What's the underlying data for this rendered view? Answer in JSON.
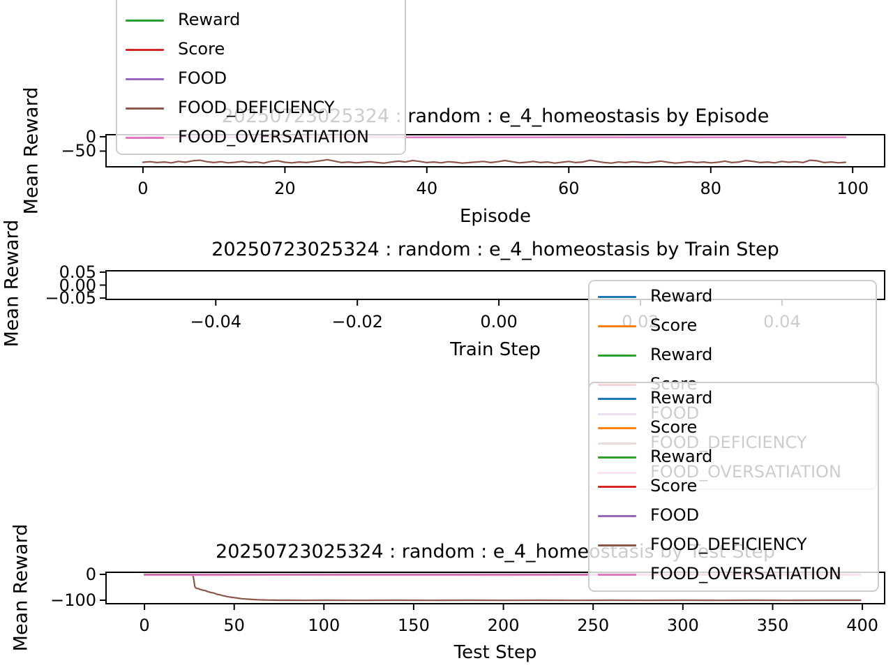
{
  "figure": {
    "background": "#ffffff"
  },
  "colors": {
    "blue": "#1f77b4",
    "orange": "#ff7f0e",
    "green": "#2ca02c",
    "red": "#d62728",
    "purple": "#9467bd",
    "brown": "#8c564b",
    "pink": "#e377c2",
    "axis": "#000000",
    "legend_border": "#cdcdcd"
  },
  "chart_data": [
    {
      "type": "line",
      "title": "20250723025324 : random : e_4_homeostasis by Episode",
      "xlabel": "Episode",
      "ylabel": "Mean Reward",
      "xlim": [
        -5.2,
        104.5
      ],
      "ylim": [
        -104.8,
        7.1
      ],
      "grid": false,
      "xticks": [
        {
          "v": 0,
          "label": "0"
        },
        {
          "v": 20,
          "label": "20"
        },
        {
          "v": 40,
          "label": "40"
        },
        {
          "v": 60,
          "label": "60"
        },
        {
          "v": 80,
          "label": "80"
        },
        {
          "v": 100,
          "label": "100"
        }
      ],
      "yticks": [
        {
          "v": 0,
          "label": "0"
        },
        {
          "v": -50,
          "label": "−50"
        }
      ],
      "legend": {
        "position": "upper-left, clipped above figure top",
        "entries": [
          {
            "label": "Reward",
            "color": "#1f77b4"
          },
          {
            "label": "Score",
            "color": "#ff7f0e"
          },
          {
            "label": "Reward",
            "color": "#2ca02c"
          },
          {
            "label": "Score",
            "color": "#d62728"
          },
          {
            "label": "FOOD",
            "color": "#9467bd"
          },
          {
            "label": "FOOD_DEFICIENCY",
            "color": "#8c564b"
          },
          {
            "label": "FOOD_OVERSATIATION",
            "color": "#e377c2"
          }
        ]
      },
      "series": [
        {
          "name": "Reward",
          "color": "#1f77b4",
          "lw": 2,
          "x": [
            0,
            99
          ],
          "y": [
            -1.4,
            -1.4
          ]
        },
        {
          "name": "Score",
          "color": "#ff7f0e",
          "lw": 2,
          "x": [
            0,
            99
          ],
          "y": [
            -1.5,
            -1.5
          ]
        },
        {
          "name": "Reward",
          "color": "#2ca02c",
          "lw": 2,
          "x": [
            0,
            99
          ],
          "y": [
            -1.5,
            -1.5
          ]
        },
        {
          "name": "Score",
          "color": "#d62728",
          "lw": 2,
          "x": [
            0,
            99
          ],
          "y": [
            -1.6,
            -1.6
          ]
        },
        {
          "name": "FOOD",
          "color": "#9467bd",
          "lw": 2,
          "x": [
            0,
            99
          ],
          "y": [
            -1.6,
            -1.6
          ]
        },
        {
          "name": "FOOD_DEFICIENCY",
          "color": "#8c564b",
          "lw": 2.2,
          "x": "index",
          "y": [
            -89,
            -87,
            -90,
            -88,
            -91,
            -86,
            -89,
            -84,
            -82,
            -87,
            -90,
            -87,
            -91,
            -89,
            -86,
            -90,
            -88,
            -92,
            -86,
            -84,
            -89,
            -91,
            -88,
            -90,
            -87,
            -84,
            -80,
            -85,
            -90,
            -88,
            -91,
            -89,
            -87,
            -90,
            -92,
            -88,
            -85,
            -88,
            -83,
            -86,
            -90,
            -88,
            -91,
            -87,
            -89,
            -92,
            -90,
            -88,
            -86,
            -90,
            -87,
            -83,
            -87,
            -91,
            -89,
            -86,
            -90,
            -88,
            -92,
            -89,
            -86,
            -90,
            -88,
            -82,
            -86,
            -90,
            -92,
            -88,
            -90,
            -87,
            -89,
            -91,
            -88,
            -85,
            -89,
            -92,
            -90,
            -87,
            -90,
            -88,
            -91,
            -89,
            -85,
            -90,
            -88,
            -83,
            -86,
            -90,
            -88,
            -91,
            -86,
            -89,
            -87,
            -90,
            -82,
            -84,
            -90,
            -88,
            -91,
            -89
          ]
        },
        {
          "name": "FOOD_OVERSATIATION",
          "color": "#e377c2",
          "lw": 2.4,
          "x": [
            0,
            8,
            16,
            24,
            32,
            40,
            48,
            56,
            64,
            72,
            80,
            88,
            99
          ],
          "y": [
            -1.8,
            -2.1,
            -1.7,
            -2.0,
            -1.6,
            -2.2,
            -1.8,
            -2.0,
            -1.7,
            -2.1,
            -1.8,
            -2.0,
            -1.9
          ]
        }
      ]
    },
    {
      "type": "line",
      "title": "20250723025324 : random : e_4_homeostasis by Train Step",
      "xlabel": "Train Step",
      "ylabel": "Mean Reward",
      "xlim": [
        -0.0555,
        0.0545
      ],
      "ylim": [
        -0.055,
        0.055
      ],
      "grid": false,
      "note": "empty axes - no data plotted",
      "xticks": [
        {
          "v": -0.04,
          "label": "−0.04"
        },
        {
          "v": -0.02,
          "label": "−0.02"
        },
        {
          "v": 0,
          "label": "0.00"
        },
        {
          "v": 0.02,
          "label": "0.02"
        },
        {
          "v": 0.04,
          "label": "0.04"
        }
      ],
      "yticks": [
        {
          "v": 0.05,
          "label": "0.05"
        },
        {
          "v": 0,
          "label": "0.00"
        },
        {
          "v": -0.05,
          "label": "−0.05"
        }
      ],
      "legend": {
        "position": "right, overlapping plot; lower half covered by Test-Step legend",
        "entries": [
          {
            "label": "Reward",
            "color": "#1f77b4"
          },
          {
            "label": "Score",
            "color": "#ff7f0e"
          },
          {
            "label": "Reward",
            "color": "#2ca02c"
          },
          {
            "label": "Score",
            "color": "#d62728"
          },
          {
            "label": "FOOD",
            "color": "#9467bd"
          },
          {
            "label": "FOOD_DEFICIENCY",
            "color": "#8c564b"
          },
          {
            "label": "FOOD_OVERSATIATION",
            "color": "#e377c2"
          }
        ]
      },
      "series": [
        {
          "name": "Reward",
          "color": "#1f77b4",
          "lw": 2,
          "x": [],
          "y": []
        },
        {
          "name": "Score",
          "color": "#ff7f0e",
          "lw": 2,
          "x": [],
          "y": []
        },
        {
          "name": "Reward",
          "color": "#2ca02c",
          "lw": 2,
          "x": [],
          "y": []
        },
        {
          "name": "Score",
          "color": "#d62728",
          "lw": 2,
          "x": [],
          "y": []
        },
        {
          "name": "FOOD",
          "color": "#9467bd",
          "lw": 2,
          "x": [],
          "y": []
        },
        {
          "name": "FOOD_DEFICIENCY",
          "color": "#8c564b",
          "lw": 2,
          "x": [],
          "y": []
        },
        {
          "name": "FOOD_OVERSATIATION",
          "color": "#e377c2",
          "lw": 2,
          "x": [],
          "y": []
        }
      ]
    },
    {
      "type": "line",
      "title": "20250723025324 : random : e_4_homeostasis by Test Step",
      "xlabel": "Test Step",
      "ylabel": "Mean Reward",
      "xlim": [
        -21.4,
        412.4
      ],
      "ylim": [
        -113.5,
        8.1
      ],
      "grid": false,
      "xticks": [
        {
          "v": 0,
          "label": "0"
        },
        {
          "v": 50,
          "label": "50"
        },
        {
          "v": 100,
          "label": "100"
        },
        {
          "v": 150,
          "label": "150"
        },
        {
          "v": 200,
          "label": "200"
        },
        {
          "v": 250,
          "label": "250"
        },
        {
          "v": 300,
          "label": "300"
        },
        {
          "v": 350,
          "label": "350"
        },
        {
          "v": 400,
          "label": "400"
        }
      ],
      "yticks": [
        {
          "v": 0,
          "label": "0"
        },
        {
          "v": -100,
          "label": "−100"
        }
      ],
      "legend": {
        "position": "upper-right, overlapping plot and title",
        "entries": [
          {
            "label": "Reward",
            "color": "#1f77b4"
          },
          {
            "label": "Score",
            "color": "#ff7f0e"
          },
          {
            "label": "Reward",
            "color": "#2ca02c"
          },
          {
            "label": "Score",
            "color": "#d62728"
          },
          {
            "label": "FOOD",
            "color": "#9467bd"
          },
          {
            "label": "FOOD_DEFICIENCY",
            "color": "#8c564b"
          },
          {
            "label": "FOOD_OVERSATIATION",
            "color": "#e377c2"
          }
        ]
      },
      "series": [
        {
          "name": "Reward",
          "color": "#1f77b4",
          "lw": 2,
          "x": [
            0,
            399
          ],
          "y": [
            -0.3,
            -0.3
          ]
        },
        {
          "name": "Score",
          "color": "#ff7f0e",
          "lw": 2,
          "x": [
            0,
            399
          ],
          "y": [
            -0.4,
            -0.4
          ]
        },
        {
          "name": "Reward",
          "color": "#2ca02c",
          "lw": 2,
          "x": [
            0,
            399
          ],
          "y": [
            -0.4,
            -0.4
          ]
        },
        {
          "name": "Score",
          "color": "#d62728",
          "lw": 2,
          "x": [
            0,
            399
          ],
          "y": [
            -0.5,
            -0.5
          ]
        },
        {
          "name": "FOOD",
          "color": "#9467bd",
          "lw": 2,
          "x": [
            0,
            399
          ],
          "y": [
            -0.6,
            -0.6
          ]
        },
        {
          "name": "FOOD_DEFICIENCY",
          "color": "#8c564b",
          "lw": 2.2,
          "x": [
            0,
            5,
            10,
            15,
            20,
            25,
            26,
            27,
            27.5,
            28,
            28.5,
            29,
            30,
            31,
            32,
            33,
            34,
            35,
            36,
            37,
            38,
            39,
            40,
            41,
            42,
            43,
            44,
            45,
            46,
            47,
            48,
            50,
            52,
            54,
            56,
            58,
            60,
            63,
            66,
            70,
            75,
            80,
            90,
            100,
            120,
            140,
            160,
            180,
            200,
            220,
            240,
            260,
            280,
            300,
            320,
            340,
            360,
            380,
            399
          ],
          "y": [
            -0.8,
            -0.8,
            -0.8,
            -0.8,
            -0.8,
            -0.8,
            -1,
            -3,
            -20,
            -45,
            -52,
            -54,
            -55,
            -58,
            -60,
            -62,
            -63,
            -66,
            -68,
            -70,
            -71,
            -73,
            -76,
            -78,
            -79,
            -81,
            -83,
            -84,
            -86,
            -87,
            -88,
            -90,
            -92,
            -94,
            -95,
            -96,
            -97,
            -98,
            -99,
            -99.5,
            -100,
            -100,
            -100.5,
            -100,
            -100.5,
            -100,
            -100.5,
            -100,
            -100.5,
            -100,
            -100.5,
            -100,
            -100.5,
            -100,
            -100.5,
            -100,
            -100.5,
            -100,
            -100
          ]
        },
        {
          "name": "FOOD_OVERSATIATION",
          "color": "#e377c2",
          "lw": 2.4,
          "x": [
            0,
            40,
            80,
            120,
            160,
            200,
            240,
            280,
            320,
            360,
            399
          ],
          "y": [
            -2.4,
            -2.6,
            -2.3,
            -2.5,
            -2.4,
            -2.6,
            -2.3,
            -2.5,
            -2.4,
            -2.6,
            -2.4
          ]
        }
      ]
    }
  ]
}
